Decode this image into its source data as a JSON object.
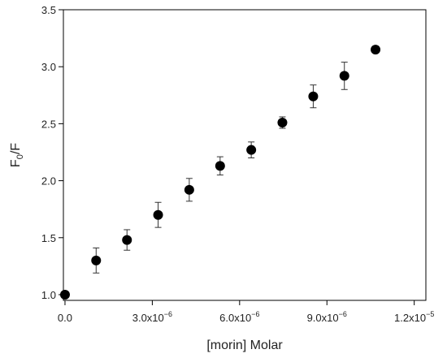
{
  "chart_data": {
    "type": "scatter",
    "title": "",
    "xlabel": "[morin] Molar",
    "ylabel_main": "F",
    "ylabel_sub": "0",
    "ylabel_tail": "/F",
    "xlim": [
      -5.5e-08,
      1.24e-05
    ],
    "ylim": [
      0.95,
      3.5
    ],
    "x_ticks": [
      0,
      3e-06,
      6e-06,
      9e-06,
      1.2e-05
    ],
    "x_tick_labels": [
      {
        "mantissa": "0.0",
        "exp": ""
      },
      {
        "mantissa": "3.0x10",
        "exp": "−6"
      },
      {
        "mantissa": "6.0x10",
        "exp": "−6"
      },
      {
        "mantissa": "9.0x10",
        "exp": "−6"
      },
      {
        "mantissa": "1.2x10",
        "exp": "−5"
      }
    ],
    "y_ticks": [
      1.0,
      1.5,
      2.0,
      2.5,
      3.0,
      3.5
    ],
    "y_tick_labels": [
      "1.0",
      "1.5",
      "2.0",
      "2.5",
      "3.0",
      "3.5"
    ],
    "grid": false,
    "legend": "none",
    "marker_color": "#000000",
    "series": [
      {
        "x": [
          0,
          1.07e-06,
          2.13e-06,
          3.2e-06,
          4.27e-06,
          5.33e-06,
          6.4e-06,
          7.47e-06,
          8.53e-06,
          9.6e-06,
          1.067e-05
        ],
        "y": [
          1.0,
          1.3,
          1.48,
          1.7,
          1.92,
          2.13,
          2.27,
          2.51,
          2.74,
          2.92,
          3.15
        ],
        "err": [
          0.0,
          0.11,
          0.09,
          0.11,
          0.1,
          0.08,
          0.07,
          0.05,
          0.1,
          0.12,
          0.02
        ]
      }
    ]
  }
}
